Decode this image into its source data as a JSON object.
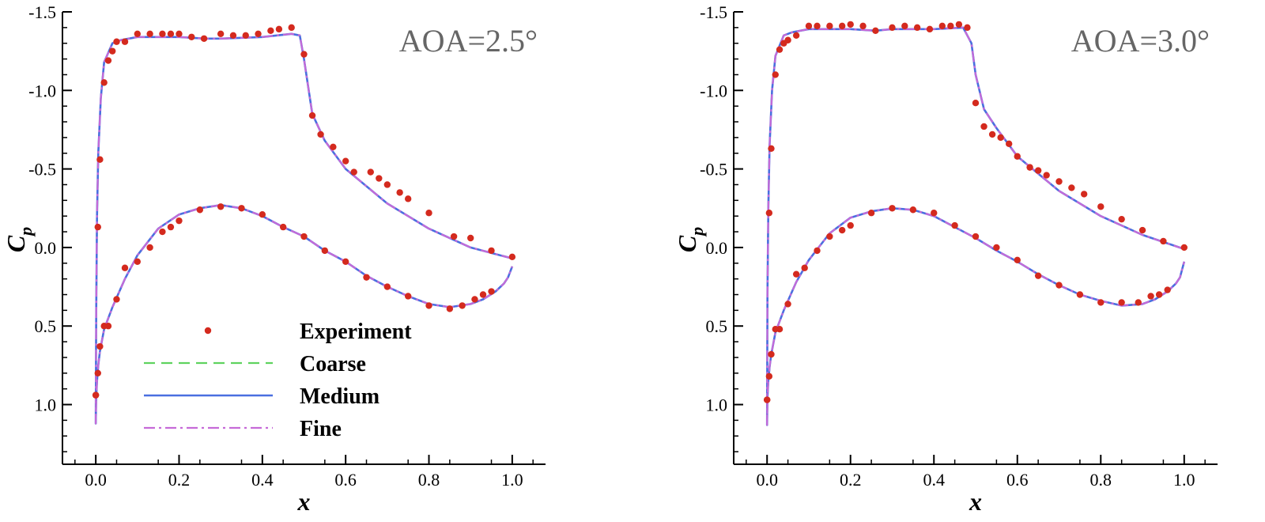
{
  "colors": {
    "experiment": "#d42a1e",
    "coarse": "#5fd35f",
    "medium": "#4a6fe0",
    "fine": "#c66ad8"
  },
  "chart_data": [
    {
      "type": "line",
      "title": "",
      "annotation": "AOA=2.5°",
      "xlabel": "x",
      "ylabel": "C",
      "ylabel_sub": "p",
      "xlim": [
        -0.08,
        1.08
      ],
      "ylim": [
        1.38,
        -1.5
      ],
      "y_inverted": true,
      "xticks": [
        "0.0",
        "0.2",
        "0.4",
        "0.6",
        "0.8",
        "1.0"
      ],
      "yticks": [
        "-1.5",
        "-1.0",
        "-0.5",
        "0.0",
        "0.5",
        "1.0"
      ],
      "legend": {
        "position": "lower-left",
        "entries": [
          "Experiment",
          "Coarse",
          "Medium",
          "Fine"
        ]
      },
      "series": [
        {
          "name": "Experiment",
          "style": "markers",
          "x": [
            0.0,
            0.005,
            0.01,
            0.02,
            0.03,
            0.04,
            0.05,
            0.07,
            0.1,
            0.13,
            0.16,
            0.18,
            0.2,
            0.23,
            0.26,
            0.3,
            0.33,
            0.36,
            0.39,
            0.42,
            0.44,
            0.47,
            0.5,
            0.52,
            0.54,
            0.57,
            0.6,
            0.62,
            0.66,
            0.68,
            0.7,
            0.73,
            0.75,
            0.8,
            0.86,
            0.9,
            0.95,
            1.0,
            0.0,
            0.005,
            0.01,
            0.02,
            0.03,
            0.05,
            0.07,
            0.1,
            0.13,
            0.16,
            0.18,
            0.2,
            0.25,
            0.3,
            0.35,
            0.4,
            0.45,
            0.5,
            0.55,
            0.6,
            0.65,
            0.7,
            0.75,
            0.8,
            0.85,
            0.88,
            0.91,
            0.93,
            0.95
          ],
          "y": [
            0.94,
            -0.13,
            -0.56,
            -1.05,
            -1.19,
            -1.25,
            -1.31,
            -1.31,
            -1.36,
            -1.36,
            -1.36,
            -1.36,
            -1.36,
            -1.34,
            -1.33,
            -1.36,
            -1.35,
            -1.35,
            -1.36,
            -1.38,
            -1.39,
            -1.4,
            -1.23,
            -0.84,
            -0.72,
            -0.64,
            -0.55,
            -0.48,
            -0.48,
            -0.44,
            -0.4,
            -0.35,
            -0.31,
            -0.22,
            -0.07,
            -0.06,
            0.02,
            0.06,
            0.94,
            0.8,
            0.63,
            0.5,
            0.5,
            0.33,
            0.13,
            0.09,
            0.0,
            -0.1,
            -0.13,
            -0.17,
            -0.24,
            -0.26,
            -0.25,
            -0.21,
            -0.13,
            -0.07,
            0.02,
            0.09,
            0.19,
            0.25,
            0.31,
            0.37,
            0.39,
            0.37,
            0.33,
            0.3,
            0.28
          ]
        },
        {
          "name": "Coarse",
          "style": "dashed",
          "x": [
            1.0,
            0.9,
            0.8,
            0.7,
            0.6,
            0.55,
            0.52,
            0.5,
            0.49,
            0.47,
            0.4,
            0.3,
            0.26,
            0.2,
            0.1,
            0.06,
            0.04,
            0.02,
            0.012,
            0.006,
            0.003,
            0.001,
            0.0,
            0.001,
            0.003,
            0.006,
            0.01,
            0.02,
            0.04,
            0.07,
            0.1,
            0.15,
            0.2,
            0.25,
            0.3,
            0.35,
            0.4,
            0.45,
            0.5,
            0.55,
            0.6,
            0.65,
            0.7,
            0.75,
            0.8,
            0.85,
            0.9,
            0.93,
            0.96,
            0.98,
            0.99,
            1.0
          ],
          "y": [
            0.07,
            0.0,
            -0.12,
            -0.28,
            -0.5,
            -0.68,
            -0.85,
            -1.2,
            -1.35,
            -1.36,
            -1.34,
            -1.33,
            -1.33,
            -1.34,
            -1.34,
            -1.32,
            -1.3,
            -1.18,
            -0.95,
            -0.6,
            -0.2,
            0.4,
            1.12,
            0.95,
            0.85,
            0.75,
            0.66,
            0.52,
            0.38,
            0.2,
            0.05,
            -0.12,
            -0.21,
            -0.25,
            -0.27,
            -0.25,
            -0.2,
            -0.13,
            -0.07,
            0.02,
            0.09,
            0.18,
            0.25,
            0.31,
            0.36,
            0.38,
            0.36,
            0.33,
            0.28,
            0.23,
            0.19,
            0.12
          ]
        },
        {
          "name": "Medium",
          "style": "solid",
          "x": [
            1.0,
            0.9,
            0.8,
            0.7,
            0.6,
            0.55,
            0.52,
            0.5,
            0.49,
            0.47,
            0.4,
            0.3,
            0.26,
            0.2,
            0.1,
            0.06,
            0.04,
            0.02,
            0.012,
            0.006,
            0.003,
            0.001,
            0.0,
            0.001,
            0.003,
            0.006,
            0.01,
            0.02,
            0.04,
            0.07,
            0.1,
            0.15,
            0.2,
            0.25,
            0.3,
            0.35,
            0.4,
            0.45,
            0.5,
            0.55,
            0.6,
            0.65,
            0.7,
            0.75,
            0.8,
            0.85,
            0.9,
            0.93,
            0.96,
            0.98,
            0.99,
            1.0
          ],
          "y": [
            0.07,
            0.0,
            -0.12,
            -0.28,
            -0.5,
            -0.68,
            -0.85,
            -1.2,
            -1.35,
            -1.36,
            -1.34,
            -1.33,
            -1.33,
            -1.34,
            -1.34,
            -1.32,
            -1.3,
            -1.18,
            -0.95,
            -0.6,
            -0.2,
            0.4,
            1.12,
            0.95,
            0.85,
            0.75,
            0.66,
            0.52,
            0.38,
            0.2,
            0.05,
            -0.12,
            -0.21,
            -0.25,
            -0.27,
            -0.25,
            -0.2,
            -0.13,
            -0.07,
            0.02,
            0.09,
            0.18,
            0.25,
            0.31,
            0.36,
            0.38,
            0.36,
            0.33,
            0.28,
            0.23,
            0.19,
            0.12
          ]
        },
        {
          "name": "Fine",
          "style": "dashdot",
          "x": [
            1.0,
            0.9,
            0.8,
            0.7,
            0.6,
            0.55,
            0.52,
            0.5,
            0.49,
            0.47,
            0.4,
            0.3,
            0.26,
            0.2,
            0.1,
            0.06,
            0.04,
            0.02,
            0.012,
            0.006,
            0.003,
            0.001,
            0.0,
            0.001,
            0.003,
            0.006,
            0.01,
            0.02,
            0.04,
            0.07,
            0.1,
            0.15,
            0.2,
            0.25,
            0.3,
            0.35,
            0.4,
            0.45,
            0.5,
            0.55,
            0.6,
            0.65,
            0.7,
            0.75,
            0.8,
            0.85,
            0.9,
            0.93,
            0.96,
            0.98,
            0.99,
            1.0
          ],
          "y": [
            0.07,
            0.0,
            -0.12,
            -0.28,
            -0.5,
            -0.68,
            -0.85,
            -1.2,
            -1.35,
            -1.36,
            -1.34,
            -1.33,
            -1.33,
            -1.34,
            -1.34,
            -1.32,
            -1.3,
            -1.18,
            -0.95,
            -0.6,
            -0.2,
            0.4,
            1.12,
            0.95,
            0.85,
            0.75,
            0.66,
            0.52,
            0.38,
            0.2,
            0.05,
            -0.12,
            -0.21,
            -0.25,
            -0.27,
            -0.25,
            -0.2,
            -0.13,
            -0.07,
            0.02,
            0.09,
            0.18,
            0.25,
            0.31,
            0.36,
            0.38,
            0.36,
            0.33,
            0.28,
            0.23,
            0.19,
            0.12
          ]
        }
      ]
    },
    {
      "type": "line",
      "title": "",
      "annotation": "AOA=3.0°",
      "xlabel": "x",
      "ylabel": "C",
      "ylabel_sub": "p",
      "xlim": [
        -0.08,
        1.08
      ],
      "ylim": [
        1.38,
        -1.5
      ],
      "y_inverted": true,
      "xticks": [
        "0.0",
        "0.2",
        "0.4",
        "0.6",
        "0.8",
        "1.0"
      ],
      "yticks": [
        "-1.5",
        "-1.0",
        "-0.5",
        "0.0",
        "0.5",
        "1.0"
      ],
      "legend": null,
      "series": [
        {
          "name": "Experiment",
          "style": "markers",
          "x": [
            0.0,
            0.005,
            0.01,
            0.02,
            0.03,
            0.04,
            0.05,
            0.07,
            0.1,
            0.12,
            0.15,
            0.18,
            0.2,
            0.23,
            0.26,
            0.3,
            0.33,
            0.36,
            0.39,
            0.42,
            0.44,
            0.46,
            0.48,
            0.5,
            0.52,
            0.54,
            0.56,
            0.58,
            0.6,
            0.63,
            0.65,
            0.67,
            0.7,
            0.73,
            0.76,
            0.8,
            0.85,
            0.9,
            0.95,
            1.0,
            0.0,
            0.005,
            0.01,
            0.02,
            0.03,
            0.05,
            0.07,
            0.09,
            0.12,
            0.15,
            0.18,
            0.2,
            0.25,
            0.3,
            0.35,
            0.4,
            0.45,
            0.5,
            0.55,
            0.6,
            0.65,
            0.7,
            0.75,
            0.8,
            0.85,
            0.89,
            0.92,
            0.94,
            0.96
          ],
          "y": [
            0.97,
            -0.22,
            -0.63,
            -1.1,
            -1.26,
            -1.3,
            -1.32,
            -1.35,
            -1.41,
            -1.41,
            -1.41,
            -1.41,
            -1.42,
            -1.41,
            -1.38,
            -1.4,
            -1.41,
            -1.4,
            -1.39,
            -1.41,
            -1.41,
            -1.42,
            -1.4,
            -0.92,
            -0.77,
            -0.72,
            -0.7,
            -0.66,
            -0.58,
            -0.51,
            -0.49,
            -0.46,
            -0.42,
            -0.38,
            -0.34,
            -0.26,
            -0.18,
            -0.11,
            -0.04,
            0.0,
            0.97,
            0.82,
            0.68,
            0.52,
            0.52,
            0.36,
            0.17,
            0.13,
            0.02,
            -0.07,
            -0.11,
            -0.14,
            -0.22,
            -0.25,
            -0.24,
            -0.22,
            -0.14,
            -0.07,
            0.0,
            0.08,
            0.18,
            0.24,
            0.3,
            0.35,
            0.35,
            0.35,
            0.31,
            0.3,
            0.27
          ]
        },
        {
          "name": "Coarse",
          "style": "dashed",
          "x": [
            1.0,
            0.9,
            0.8,
            0.7,
            0.6,
            0.55,
            0.52,
            0.5,
            0.49,
            0.47,
            0.4,
            0.3,
            0.26,
            0.2,
            0.1,
            0.06,
            0.04,
            0.02,
            0.012,
            0.006,
            0.003,
            0.001,
            0.0,
            0.001,
            0.003,
            0.006,
            0.01,
            0.02,
            0.04,
            0.07,
            0.1,
            0.15,
            0.2,
            0.25,
            0.3,
            0.35,
            0.4,
            0.45,
            0.5,
            0.55,
            0.6,
            0.65,
            0.7,
            0.75,
            0.8,
            0.85,
            0.9,
            0.93,
            0.96,
            0.98,
            0.99,
            1.0
          ],
          "y": [
            0.01,
            -0.08,
            -0.2,
            -0.36,
            -0.58,
            -0.76,
            -0.88,
            -1.1,
            -1.3,
            -1.4,
            -1.39,
            -1.39,
            -1.38,
            -1.39,
            -1.39,
            -1.37,
            -1.35,
            -1.22,
            -1.0,
            -0.65,
            -0.25,
            0.3,
            1.13,
            0.95,
            0.85,
            0.76,
            0.68,
            0.54,
            0.4,
            0.22,
            0.08,
            -0.09,
            -0.19,
            -0.23,
            -0.25,
            -0.24,
            -0.2,
            -0.13,
            -0.06,
            0.02,
            0.09,
            0.17,
            0.24,
            0.3,
            0.34,
            0.37,
            0.36,
            0.33,
            0.28,
            0.23,
            0.19,
            0.09
          ]
        },
        {
          "name": "Medium",
          "style": "solid",
          "x": [
            1.0,
            0.9,
            0.8,
            0.7,
            0.6,
            0.55,
            0.52,
            0.5,
            0.49,
            0.47,
            0.4,
            0.3,
            0.26,
            0.2,
            0.1,
            0.06,
            0.04,
            0.02,
            0.012,
            0.006,
            0.003,
            0.001,
            0.0,
            0.001,
            0.003,
            0.006,
            0.01,
            0.02,
            0.04,
            0.07,
            0.1,
            0.15,
            0.2,
            0.25,
            0.3,
            0.35,
            0.4,
            0.45,
            0.5,
            0.55,
            0.6,
            0.65,
            0.7,
            0.75,
            0.8,
            0.85,
            0.9,
            0.93,
            0.96,
            0.98,
            0.99,
            1.0
          ],
          "y": [
            0.01,
            -0.08,
            -0.2,
            -0.36,
            -0.58,
            -0.76,
            -0.88,
            -1.1,
            -1.3,
            -1.4,
            -1.39,
            -1.39,
            -1.38,
            -1.39,
            -1.39,
            -1.37,
            -1.35,
            -1.22,
            -1.0,
            -0.65,
            -0.25,
            0.3,
            1.13,
            0.95,
            0.85,
            0.76,
            0.68,
            0.54,
            0.4,
            0.22,
            0.08,
            -0.09,
            -0.19,
            -0.23,
            -0.25,
            -0.24,
            -0.2,
            -0.13,
            -0.06,
            0.02,
            0.09,
            0.17,
            0.24,
            0.3,
            0.34,
            0.37,
            0.36,
            0.33,
            0.28,
            0.23,
            0.19,
            0.09
          ]
        },
        {
          "name": "Fine",
          "style": "dashdot",
          "x": [
            1.0,
            0.9,
            0.8,
            0.7,
            0.6,
            0.55,
            0.52,
            0.5,
            0.49,
            0.47,
            0.4,
            0.3,
            0.26,
            0.2,
            0.1,
            0.06,
            0.04,
            0.02,
            0.012,
            0.006,
            0.003,
            0.001,
            0.0,
            0.001,
            0.003,
            0.006,
            0.01,
            0.02,
            0.04,
            0.07,
            0.1,
            0.15,
            0.2,
            0.25,
            0.3,
            0.35,
            0.4,
            0.45,
            0.5,
            0.55,
            0.6,
            0.65,
            0.7,
            0.75,
            0.8,
            0.85,
            0.9,
            0.93,
            0.96,
            0.98,
            0.99,
            1.0
          ],
          "y": [
            0.01,
            -0.08,
            -0.2,
            -0.36,
            -0.58,
            -0.76,
            -0.88,
            -1.1,
            -1.3,
            -1.4,
            -1.39,
            -1.39,
            -1.38,
            -1.39,
            -1.39,
            -1.37,
            -1.35,
            -1.22,
            -1.0,
            -0.65,
            -0.25,
            0.3,
            1.13,
            0.95,
            0.85,
            0.76,
            0.68,
            0.54,
            0.4,
            0.22,
            0.08,
            -0.09,
            -0.19,
            -0.23,
            -0.25,
            -0.24,
            -0.2,
            -0.13,
            -0.06,
            0.02,
            0.09,
            0.17,
            0.24,
            0.3,
            0.34,
            0.37,
            0.36,
            0.33,
            0.28,
            0.23,
            0.19,
            0.09
          ]
        }
      ]
    }
  ]
}
